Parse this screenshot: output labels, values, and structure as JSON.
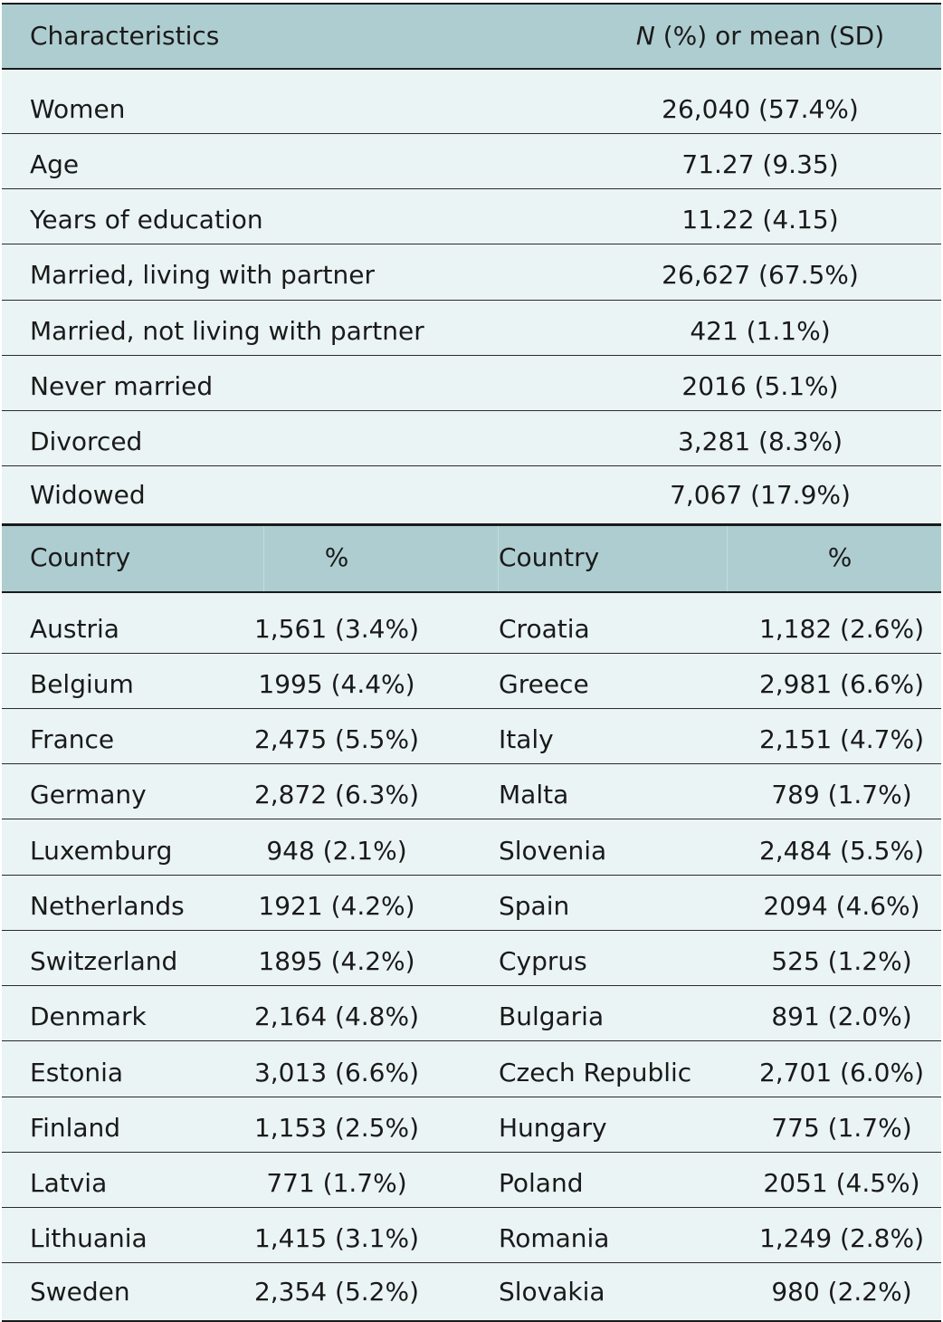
{
  "header": {
    "characteristics_label": "Characteristics",
    "value_label_n": "N",
    "value_label_rest": " (%) or mean (SD)"
  },
  "characteristics": [
    {
      "label": "Women",
      "value": "26,040 (57.4%)"
    },
    {
      "label": "Age",
      "value": "71.27 (9.35)"
    },
    {
      "label": "Years of education",
      "value": "11.22 (4.15)"
    },
    {
      "label": "Married, living with partner",
      "value": "26,627 (67.5%)"
    },
    {
      "label": "Married, not living with partner",
      "value": "421 (1.1%)"
    },
    {
      "label": "Never married",
      "value": "2016 (5.1%)"
    },
    {
      "label": "Divorced",
      "value": "3,281 (8.3%)"
    },
    {
      "label": "Widowed",
      "value": "7,067 (17.9%)"
    }
  ],
  "country_header": {
    "country_label_left": "Country",
    "percent_label_left": "%",
    "country_label_right": "Country",
    "percent_label_right": "%"
  },
  "countries": [
    {
      "left_country": "Austria",
      "left_value": "1,561 (3.4%)",
      "right_country": "Croatia",
      "right_value": "1,182 (2.6%)"
    },
    {
      "left_country": "Belgium",
      "left_value": "1995 (4.4%)",
      "right_country": "Greece",
      "right_value": "2,981 (6.6%)"
    },
    {
      "left_country": "France",
      "left_value": "2,475 (5.5%)",
      "right_country": "Italy",
      "right_value": "2,151 (4.7%)"
    },
    {
      "left_country": "Germany",
      "left_value": "2,872 (6.3%)",
      "right_country": "Malta",
      "right_value": "789 (1.7%)"
    },
    {
      "left_country": "Luxemburg",
      "left_value": "948 (2.1%)",
      "right_country": "Slovenia",
      "right_value": "2,484 (5.5%)"
    },
    {
      "left_country": "Netherlands",
      "left_value": "1921 (4.2%)",
      "right_country": "Spain",
      "right_value": "2094 (4.6%)"
    },
    {
      "left_country": "Switzerland",
      "left_value": "1895 (4.2%)",
      "right_country": "Cyprus",
      "right_value": "525 (1.2%)"
    },
    {
      "left_country": "Denmark",
      "left_value": "2,164 (4.8%)",
      "right_country": "Bulgaria",
      "right_value": "891 (2.0%)"
    },
    {
      "left_country": "Estonia",
      "left_value": "3,013 (6.6%)",
      "right_country": "Czech Republic",
      "right_value": "2,701 (6.0%)"
    },
    {
      "left_country": "Finland",
      "left_value": "1,153 (2.5%)",
      "right_country": "Hungary",
      "right_value": "775 (1.7%)"
    },
    {
      "left_country": "Latvia",
      "left_value": "771 (1.7%)",
      "right_country": "Poland",
      "right_value": "2051 (4.5%)"
    },
    {
      "left_country": "Lithuania",
      "left_value": "1,415 (3.1%)",
      "right_country": "Romania",
      "right_value": "1,249 (2.8%)"
    },
    {
      "left_country": "Sweden",
      "left_value": "2,354 (5.2%)",
      "right_country": "Slovakia",
      "right_value": "980 (2.2%)"
    }
  ]
}
